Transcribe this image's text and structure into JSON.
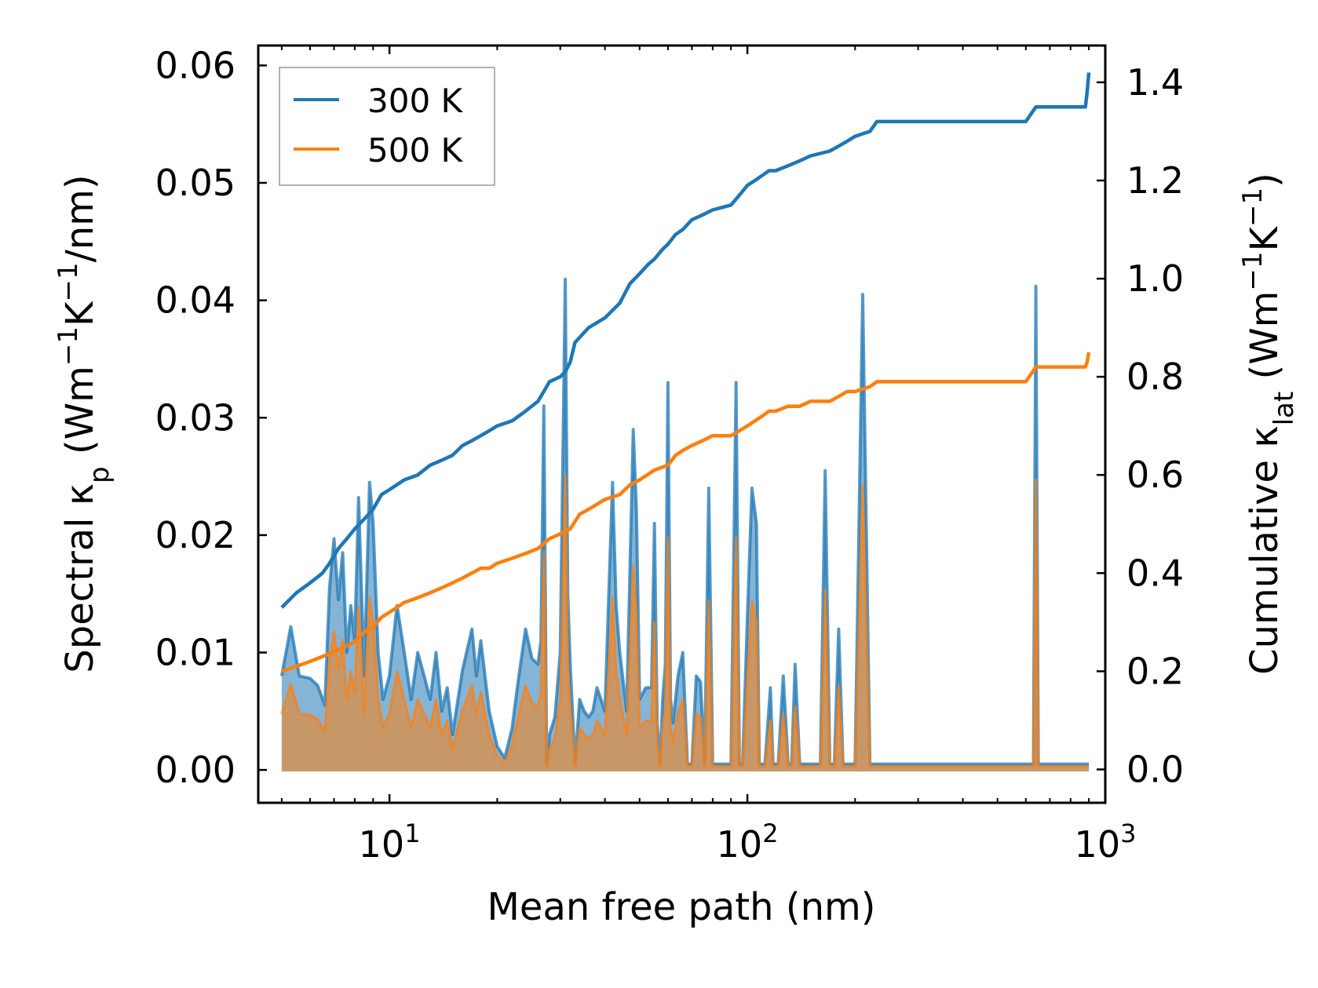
{
  "chart_data": {
    "type": "line",
    "title": "",
    "xlabel": "Mean free path (nm)",
    "ylabel_left": {
      "prefix": "Spectral κ",
      "sub": "p",
      "unit_pre": " (Wm",
      "sup1": "−1",
      "unit_mid": "K",
      "sup2": "−1",
      "unit_post": "/nm)"
    },
    "ylabel_right": {
      "prefix": "Cumulative κ",
      "sub": "lat",
      "unit_pre": " (Wm",
      "sup1": "−1",
      "unit_mid": "K",
      "sup2": "−1",
      "unit_post": ")"
    },
    "xscale": "log",
    "xlim": [
      4.3,
      1000
    ],
    "ylim_left": [
      -0.0028,
      0.0617
    ],
    "ylim_right": [
      -0.068,
      1.475
    ],
    "x_ticks": [
      {
        "value": 10,
        "base": "10",
        "exp": "1"
      },
      {
        "value": 100,
        "base": "10",
        "exp": "2"
      },
      {
        "value": 1000,
        "base": "10",
        "exp": "3"
      }
    ],
    "y_ticks_left": [
      {
        "value": 0.0,
        "label": "0.00"
      },
      {
        "value": 0.01,
        "label": "0.01"
      },
      {
        "value": 0.02,
        "label": "0.02"
      },
      {
        "value": 0.03,
        "label": "0.03"
      },
      {
        "value": 0.04,
        "label": "0.04"
      },
      {
        "value": 0.05,
        "label": "0.05"
      },
      {
        "value": 0.06,
        "label": "0.06"
      }
    ],
    "y_ticks_right": [
      {
        "value": 0.0,
        "label": "0.0"
      },
      {
        "value": 0.2,
        "label": "0.2"
      },
      {
        "value": 0.4,
        "label": "0.4"
      },
      {
        "value": 0.6,
        "label": "0.6"
      },
      {
        "value": 0.8,
        "label": "0.8"
      },
      {
        "value": 1.0,
        "label": "1.0"
      },
      {
        "value": 1.2,
        "label": "1.2"
      },
      {
        "value": 1.4,
        "label": "1.4"
      }
    ],
    "legend": {
      "position": "top-left",
      "entries": [
        "300 K",
        "500 K"
      ]
    },
    "colors": {
      "300 K": "#1f77b4",
      "500 K": "#ff7f0e"
    },
    "series": [
      {
        "name": "300 K",
        "axis": "right",
        "kind": "cumulative",
        "x": [
          5,
          5.5,
          6,
          6.5,
          6.8,
          7.2,
          7.6,
          8,
          8.5,
          9,
          9.5,
          10,
          11,
          12,
          13,
          14,
          15,
          16,
          17,
          18,
          19,
          20,
          22,
          24,
          26,
          27,
          28,
          30,
          31,
          32,
          33,
          36,
          40,
          44,
          47,
          50,
          53,
          55,
          58,
          60,
          63,
          66,
          70,
          75,
          80,
          90,
          95,
          100,
          105,
          110,
          115,
          120,
          130,
          140,
          150,
          170,
          180,
          190,
          200,
          220,
          230,
          300,
          400,
          500,
          600,
          640,
          650,
          700,
          800,
          880,
          890,
          900
        ],
        "values": [
          0.33,
          0.36,
          0.38,
          0.4,
          0.42,
          0.45,
          0.47,
          0.49,
          0.51,
          0.53,
          0.56,
          0.57,
          0.59,
          0.6,
          0.62,
          0.63,
          0.64,
          0.66,
          0.67,
          0.68,
          0.69,
          0.7,
          0.71,
          0.73,
          0.75,
          0.77,
          0.79,
          0.8,
          0.81,
          0.83,
          0.87,
          0.9,
          0.92,
          0.95,
          0.99,
          1.01,
          1.03,
          1.04,
          1.06,
          1.07,
          1.09,
          1.1,
          1.12,
          1.13,
          1.14,
          1.15,
          1.17,
          1.19,
          1.2,
          1.21,
          1.22,
          1.22,
          1.23,
          1.24,
          1.25,
          1.26,
          1.27,
          1.28,
          1.29,
          1.3,
          1.32,
          1.32,
          1.32,
          1.32,
          1.32,
          1.35,
          1.35,
          1.35,
          1.35,
          1.35,
          1.38,
          1.42
        ]
      },
      {
        "name": "500 K",
        "axis": "right",
        "kind": "cumulative",
        "x": [
          5,
          5.5,
          6,
          6.5,
          7,
          7.5,
          8,
          8.5,
          9,
          9.5,
          10,
          11,
          12,
          13,
          14,
          15,
          16,
          17,
          18,
          19,
          20,
          22,
          24,
          26,
          28,
          30,
          32,
          34,
          36,
          40,
          44,
          47,
          50,
          55,
          60,
          63,
          66,
          70,
          75,
          80,
          90,
          95,
          100,
          110,
          115,
          120,
          130,
          140,
          150,
          170,
          180,
          190,
          200,
          220,
          230,
          300,
          400,
          500,
          600,
          640,
          650,
          700,
          800,
          880,
          890,
          900
        ],
        "values": [
          0.2,
          0.21,
          0.22,
          0.23,
          0.24,
          0.25,
          0.26,
          0.28,
          0.29,
          0.31,
          0.32,
          0.34,
          0.35,
          0.36,
          0.37,
          0.38,
          0.39,
          0.4,
          0.41,
          0.41,
          0.42,
          0.43,
          0.44,
          0.45,
          0.47,
          0.48,
          0.49,
          0.52,
          0.53,
          0.55,
          0.56,
          0.58,
          0.59,
          0.61,
          0.62,
          0.64,
          0.65,
          0.66,
          0.67,
          0.68,
          0.68,
          0.69,
          0.7,
          0.72,
          0.73,
          0.73,
          0.74,
          0.74,
          0.75,
          0.75,
          0.76,
          0.77,
          0.77,
          0.78,
          0.79,
          0.79,
          0.79,
          0.79,
          0.79,
          0.82,
          0.82,
          0.82,
          0.82,
          0.82,
          0.83,
          0.85
        ]
      },
      {
        "name": "300 K",
        "axis": "left",
        "kind": "spectral",
        "x": [
          5,
          5.3,
          5.6,
          6,
          6.3,
          6.6,
          6.8,
          7.0,
          7.2,
          7.4,
          7.6,
          7.8,
          8.0,
          8.2,
          8.5,
          8.8,
          9.0,
          9.3,
          9.6,
          10,
          10.5,
          11,
          11.5,
          12,
          12.5,
          13,
          13.5,
          14,
          14.5,
          15,
          16,
          17,
          17.5,
          18,
          19,
          20,
          21,
          22,
          23,
          24,
          25,
          26,
          26.5,
          27,
          27.5,
          28,
          29,
          30,
          31,
          31.5,
          32,
          33,
          34,
          35,
          36,
          37,
          38,
          40,
          42,
          43,
          44,
          46,
          48,
          49,
          50,
          52,
          54,
          55,
          56,
          57,
          58,
          59,
          60,
          61,
          62,
          64,
          66,
          68,
          70,
          72,
          74,
          76,
          78,
          80,
          85,
          90,
          93,
          95,
          97,
          100,
          103,
          106,
          108,
          110,
          112,
          116,
          118,
          120,
          122,
          126,
          130,
          133,
          136,
          140,
          143,
          146,
          148,
          160,
          165,
          170,
          175,
          180,
          185,
          190,
          195,
          200,
          210,
          220,
          225,
          230,
          240,
          300,
          400,
          500,
          600,
          630,
          640,
          650,
          660,
          680,
          700,
          800,
          880,
          890,
          900
        ],
        "values": [
          0.008,
          0.0122,
          0.008,
          0.0078,
          0.0072,
          0.0055,
          0.0155,
          0.0197,
          0.0145,
          0.0185,
          0.01,
          0.014,
          0.011,
          0.0232,
          0.008,
          0.0245,
          0.021,
          0.01,
          0.006,
          0.008,
          0.014,
          0.01,
          0.006,
          0.01,
          0.008,
          0.006,
          0.01,
          0.005,
          0.007,
          0.003,
          0.0085,
          0.012,
          0.008,
          0.011,
          0.005,
          0.002,
          0.001,
          0.0035,
          0.008,
          0.012,
          0.0095,
          0.009,
          0.011,
          0.031,
          0.0005,
          0.003,
          0.0045,
          0.01,
          0.0418,
          0.015,
          0.009,
          0.0005,
          0.006,
          0.005,
          0.0045,
          0.005,
          0.007,
          0.005,
          0.0245,
          0.014,
          0.01,
          0.005,
          0.029,
          0.022,
          0.006,
          0.007,
          0.007,
          0.021,
          0.004,
          0.0005,
          0.006,
          0.009,
          0.033,
          0.006,
          0.004,
          0.008,
          0.01,
          0.0005,
          0.0005,
          0.008,
          0.0075,
          0.0005,
          0.024,
          0.0005,
          0.0005,
          0.0005,
          0.033,
          0.0005,
          0.0005,
          0.013,
          0.024,
          0.021,
          0.0005,
          0.0005,
          0.0005,
          0.007,
          0.0005,
          0.0005,
          0.0005,
          0.008,
          0.0005,
          0.0005,
          0.009,
          0.0005,
          0.0005,
          0.0005,
          0.0005,
          0.0005,
          0.0255,
          0.0005,
          0.0005,
          0.012,
          0.0005,
          0.0005,
          0.0005,
          0.0005,
          0.0405,
          0.0005,
          0.0005,
          0.0005,
          0.0005,
          0.0005,
          0.0005,
          0.0005,
          0.0005,
          0.0005,
          0.0412,
          0.0005,
          0.0005,
          0.0005,
          0.0005,
          0.0005,
          0.0005,
          0.0005,
          0.0005
        ]
      }
    ]
  }
}
